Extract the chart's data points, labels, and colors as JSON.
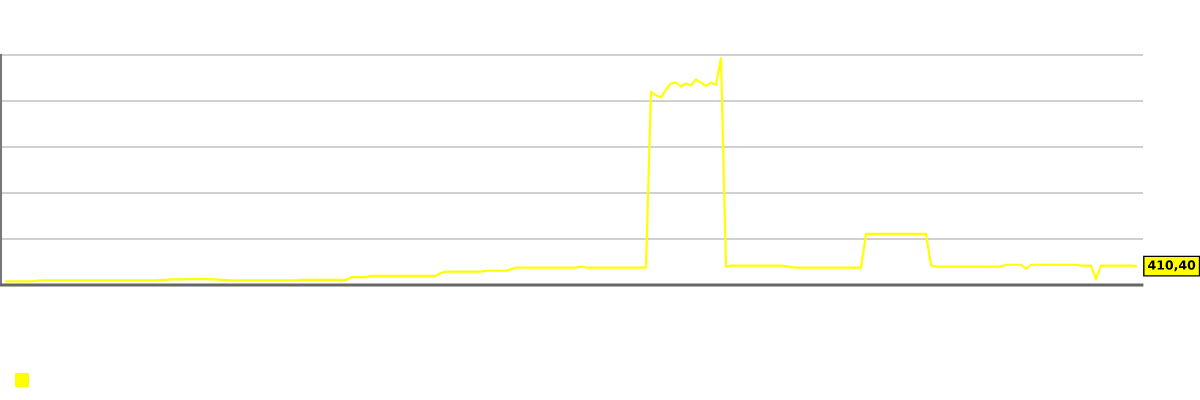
{
  "chart_data": {
    "type": "line",
    "categories": [
      null,
      null,
      null,
      null,
      null,
      null,
      null,
      null,
      null,
      null,
      null,
      null,
      null,
      null,
      null,
      null,
      null,
      null,
      null,
      null,
      null,
      null,
      null,
      null,
      null,
      null,
      null,
      null,
      null,
      null,
      null,
      null,
      null,
      null,
      null,
      null,
      null,
      null,
      null,
      null,
      null,
      null,
      null,
      null,
      null,
      null,
      null,
      null,
      null,
      null,
      null,
      null,
      null,
      null,
      null,
      null,
      null,
      null,
      null,
      null,
      null,
      null,
      null,
      null,
      null,
      null,
      null,
      null,
      null,
      null,
      null,
      null,
      null,
      null,
      null,
      null,
      null,
      null,
      null,
      null,
      null,
      null,
      null,
      null,
      null,
      null,
      null,
      null,
      null,
      null,
      null,
      null,
      null,
      null,
      null,
      null,
      null,
      null,
      null,
      null,
      null,
      null,
      null,
      null,
      null,
      null,
      null,
      null,
      null,
      null,
      null,
      null,
      null,
      null,
      null,
      null,
      null,
      null,
      null,
      null,
      null,
      null,
      null,
      null,
      null,
      null,
      null,
      null,
      null,
      null,
      null,
      null,
      null,
      null,
      null,
      null,
      null,
      null,
      null,
      null,
      null,
      null,
      null,
      null,
      null,
      null,
      null,
      null,
      null,
      null,
      null,
      null,
      null,
      null,
      null,
      null,
      null,
      null,
      null,
      null,
      null,
      null,
      null,
      null,
      null,
      null,
      null,
      null,
      null,
      null,
      null,
      null,
      null,
      null,
      null,
      null,
      null,
      null,
      null,
      null,
      null,
      null,
      null,
      null,
      null,
      null,
      null,
      null,
      null,
      null,
      null,
      null,
      null,
      null,
      null,
      null,
      null,
      null,
      null,
      null,
      null,
      null,
      null,
      null,
      null,
      null,
      null,
      null,
      null,
      null,
      null,
      null,
      null,
      null,
      null,
      null,
      null,
      null,
      null,
      null,
      null,
      null,
      null,
      null,
      null,
      null,
      null
    ],
    "series": [
      {
        "color": "#ffff00",
        "values": [
          80,
          80,
          80,
          80,
          80,
          80,
          90,
          100,
          100,
          100,
          100,
          100,
          100,
          100,
          100,
          100,
          100,
          100,
          100,
          100,
          100,
          100,
          100,
          100,
          100,
          100,
          100,
          100,
          100,
          100,
          100,
          110,
          110,
          120,
          120,
          120,
          130,
          130,
          130,
          130,
          130,
          120,
          120,
          110,
          110,
          100,
          100,
          100,
          100,
          100,
          100,
          100,
          100,
          100,
          100,
          100,
          100,
          100,
          100,
          110,
          110,
          110,
          110,
          110,
          110,
          110,
          110,
          110,
          110,
          170,
          170,
          170,
          170,
          200,
          200,
          200,
          200,
          200,
          200,
          200,
          200,
          200,
          200,
          200,
          200,
          200,
          200,
          260,
          290,
          290,
          290,
          290,
          290,
          290,
          290,
          290,
          310,
          310,
          310,
          310,
          310,
          340,
          380,
          380,
          380,
          380,
          380,
          380,
          380,
          380,
          380,
          380,
          380,
          380,
          380,
          400,
          380,
          380,
          380,
          380,
          380,
          380,
          380,
          380,
          380,
          380,
          380,
          380,
          380,
          4200,
          4120,
          4080,
          4250,
          4380,
          4400,
          4320,
          4380,
          4340,
          4470,
          4400,
          4330,
          4400,
          4350,
          4930,
          400,
          420,
          420,
          420,
          420,
          420,
          420,
          420,
          420,
          420,
          420,
          420,
          410,
          390,
          380,
          380,
          380,
          380,
          380,
          380,
          380,
          380,
          380,
          380,
          380,
          380,
          380,
          380,
          1110,
          1110,
          1110,
          1110,
          1110,
          1110,
          1110,
          1110,
          1110,
          1110,
          1110,
          1110,
          1110,
          430,
          400,
          400,
          400,
          400,
          400,
          400,
          400,
          400,
          400,
          400,
          400,
          400,
          400,
          400,
          440,
          440,
          440,
          440,
          350,
          440,
          440,
          440,
          440,
          440,
          440,
          440,
          440,
          440,
          440,
          420,
          420,
          420,
          120,
          420,
          420,
          420,
          420,
          420,
          420,
          420,
          410.4
        ],
        "value_labels": [
          null,
          null,
          null,
          null,
          null,
          null,
          null,
          null,
          null,
          null,
          null,
          null,
          null,
          null,
          null,
          null,
          null,
          null,
          null,
          null,
          null,
          null,
          null,
          null,
          null,
          null,
          null,
          null,
          null,
          null,
          null,
          null,
          null,
          null,
          null,
          null,
          null,
          null,
          null,
          null,
          null,
          null,
          null,
          null,
          null,
          null,
          null,
          null,
          null,
          null,
          null,
          null,
          null,
          null,
          null,
          null,
          null,
          null,
          null,
          null,
          null,
          null,
          null,
          null,
          null,
          null,
          null,
          null,
          null,
          null,
          null,
          null,
          null,
          null,
          null,
          null,
          null,
          null,
          null,
          null,
          null,
          null,
          null,
          null,
          null,
          null,
          null,
          null,
          null,
          null,
          null,
          null,
          null,
          null,
          null,
          null,
          null,
          null,
          null,
          null,
          null,
          null,
          null,
          null,
          null,
          null,
          null,
          null,
          null,
          null,
          null,
          null,
          null,
          null,
          null,
          null,
          null,
          null,
          null,
          null,
          null,
          null,
          null,
          null,
          null,
          null,
          null,
          null,
          null,
          null,
          null,
          null,
          null,
          null,
          null,
          null,
          null,
          null,
          null,
          null,
          null,
          null,
          null,
          null,
          null,
          null,
          null,
          null,
          null,
          null,
          null,
          null,
          null,
          null,
          null,
          null,
          null,
          null,
          null,
          null,
          null,
          null,
          null,
          null,
          null,
          null,
          null,
          null,
          null,
          null,
          null,
          null,
          null,
          null,
          null,
          null,
          null,
          null,
          null,
          null,
          null,
          null,
          null,
          null,
          null,
          null,
          null,
          null,
          null,
          null,
          null,
          null,
          null,
          null,
          null,
          null,
          null,
          null,
          null,
          null,
          null,
          null,
          null,
          null,
          null,
          null,
          null,
          null,
          null,
          null,
          null,
          null,
          null,
          null,
          null,
          null,
          null,
          null,
          null,
          null,
          null,
          null,
          null,
          null,
          null,
          null,
          "410,40"
        ]
      }
    ],
    "ylim": [
      0,
      5000
    ],
    "yticks": [
      {
        "value": 0,
        "label": null
      },
      {
        "value": 1000,
        "label": null
      },
      {
        "value": 2000,
        "label": null
      },
      {
        "value": 3000,
        "label": null
      },
      {
        "value": 4000,
        "label": null
      },
      {
        "value": 5000,
        "label": null
      }
    ],
    "grid": "y",
    "line_style": "solid"
  }
}
